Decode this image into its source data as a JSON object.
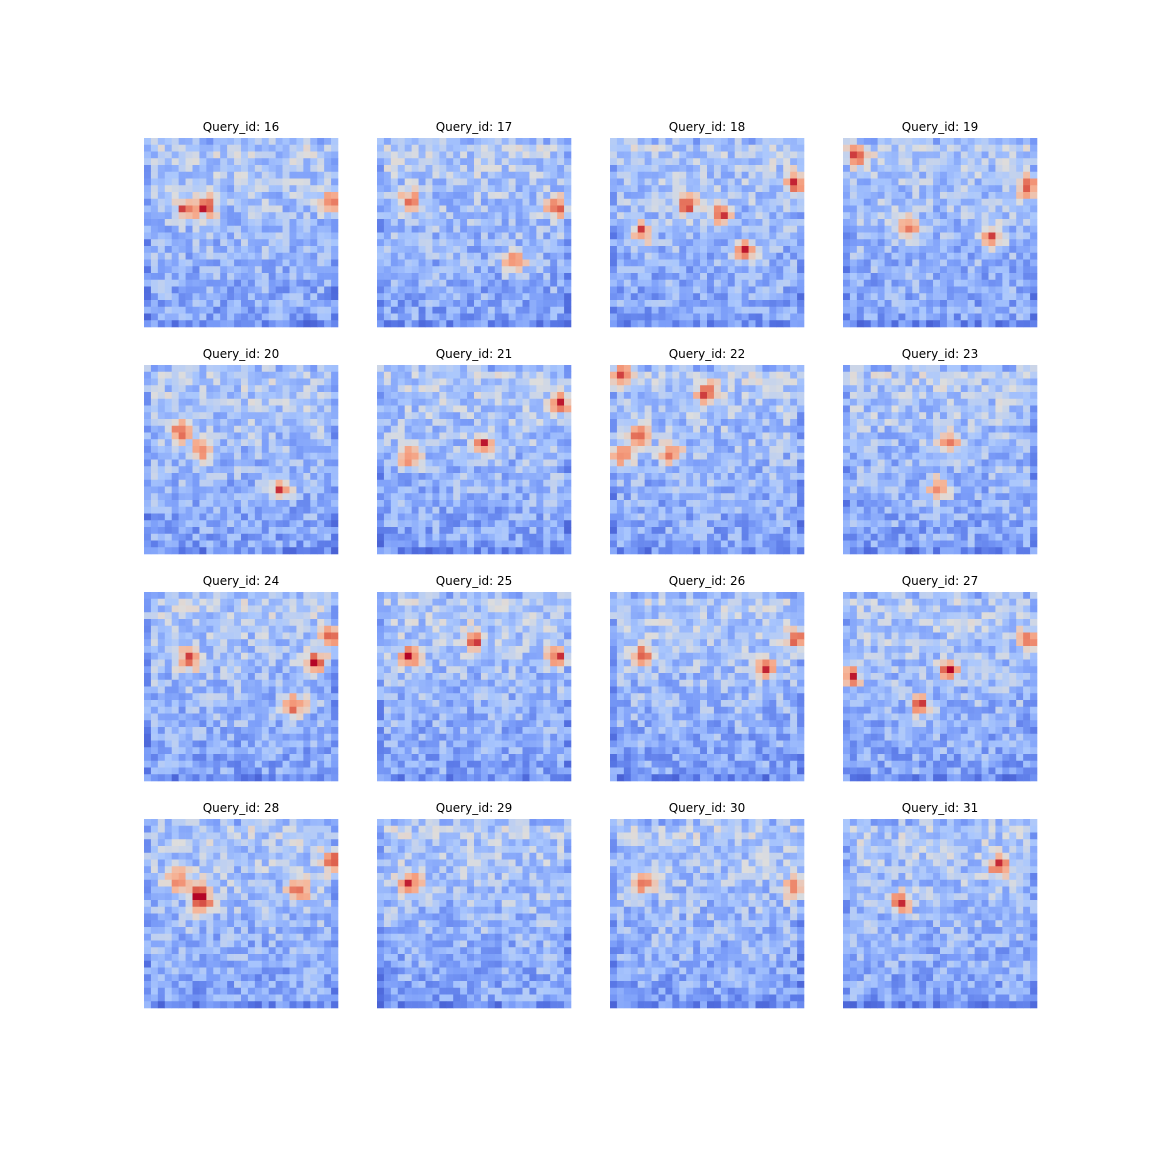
{
  "chart_data": [
    {
      "type": "heatmap",
      "title": "Query_id: 16",
      "grid": false,
      "colormap": "coolwarm",
      "hotspots": [
        [
          0.33,
          0.97
        ],
        [
          0.36,
          0.32
        ],
        [
          0.38,
          0.22
        ]
      ]
    },
    {
      "type": "heatmap",
      "title": "Query_id: 17",
      "grid": false,
      "colormap": "coolwarm",
      "hotspots": [
        [
          0.34,
          0.17
        ],
        [
          0.66,
          0.71
        ],
        [
          0.37,
          0.93
        ]
      ]
    },
    {
      "type": "heatmap",
      "title": "Query_id: 18",
      "grid": false,
      "colormap": "coolwarm",
      "hotspots": [
        [
          0.41,
          0.57
        ],
        [
          0.5,
          0.17
        ],
        [
          0.6,
          0.7
        ],
        [
          0.24,
          0.96
        ],
        [
          0.35,
          0.4
        ]
      ]
    },
    {
      "type": "heatmap",
      "title": "Query_id: 19",
      "grid": false,
      "colormap": "coolwarm",
      "hotspots": [
        [
          0.48,
          0.33
        ],
        [
          0.52,
          0.76
        ],
        [
          0.26,
          0.96
        ],
        [
          0.1,
          0.07
        ]
      ]
    },
    {
      "type": "heatmap",
      "title": "Query_id: 20",
      "grid": false,
      "colormap": "coolwarm",
      "hotspots": [
        [
          0.35,
          0.19
        ],
        [
          0.45,
          0.3
        ],
        [
          0.65,
          0.7
        ]
      ]
    },
    {
      "type": "heatmap",
      "title": "Query_id: 21",
      "grid": false,
      "colormap": "coolwarm",
      "hotspots": [
        [
          0.42,
          0.55
        ],
        [
          0.49,
          0.17
        ],
        [
          0.2,
          0.95
        ]
      ]
    },
    {
      "type": "heatmap",
      "title": "Query_id: 22",
      "grid": false,
      "colormap": "coolwarm",
      "hotspots": [
        [
          0.05,
          0.06
        ],
        [
          0.46,
          0.32
        ],
        [
          0.48,
          0.06
        ],
        [
          0.37,
          0.15
        ],
        [
          0.15,
          0.5
        ]
      ]
    },
    {
      "type": "heatmap",
      "title": "Query_id: 23",
      "grid": false,
      "colormap": "coolwarm",
      "hotspots": [
        [
          0.41,
          0.55
        ],
        [
          0.65,
          0.5
        ]
      ]
    },
    {
      "type": "heatmap",
      "title": "Query_id: 24",
      "grid": false,
      "colormap": "coolwarm",
      "hotspots": [
        [
          0.24,
          0.97
        ],
        [
          0.37,
          0.88
        ],
        [
          0.36,
          0.23
        ],
        [
          0.6,
          0.78
        ]
      ]
    },
    {
      "type": "heatmap",
      "title": "Query_id: 25",
      "grid": false,
      "colormap": "coolwarm",
      "hotspots": [
        [
          0.34,
          0.17
        ],
        [
          0.25,
          0.5
        ],
        [
          0.35,
          0.93
        ]
      ]
    },
    {
      "type": "heatmap",
      "title": "Query_id: 26",
      "grid": false,
      "colormap": "coolwarm",
      "hotspots": [
        [
          0.34,
          0.17
        ],
        [
          0.25,
          0.97
        ],
        [
          0.4,
          0.8
        ]
      ]
    },
    {
      "type": "heatmap",
      "title": "Query_id: 27",
      "grid": false,
      "colormap": "coolwarm",
      "hotspots": [
        [
          0.41,
          0.55
        ],
        [
          0.25,
          0.97
        ],
        [
          0.6,
          0.4
        ],
        [
          0.45,
          0.04
        ]
      ]
    },
    {
      "type": "heatmap",
      "title": "Query_id: 28",
      "grid": false,
      "colormap": "coolwarm",
      "hotspots": [
        [
          0.38,
          0.28
        ],
        [
          0.45,
          0.31
        ],
        [
          0.33,
          0.18
        ],
        [
          0.38,
          0.8
        ],
        [
          0.22,
          0.97
        ]
      ]
    },
    {
      "type": "heatmap",
      "title": "Query_id: 29",
      "grid": false,
      "colormap": "coolwarm",
      "hotspots": [
        [
          0.34,
          0.17
        ]
      ]
    },
    {
      "type": "heatmap",
      "title": "Query_id: 30",
      "grid": false,
      "colormap": "coolwarm",
      "hotspots": [
        [
          0.34,
          0.17
        ],
        [
          0.37,
          0.95
        ]
      ]
    },
    {
      "type": "heatmap",
      "title": "Query_id: 31",
      "grid": false,
      "colormap": "coolwarm",
      "hotspots": [
        [
          0.44,
          0.3
        ],
        [
          0.25,
          0.8
        ]
      ]
    }
  ]
}
